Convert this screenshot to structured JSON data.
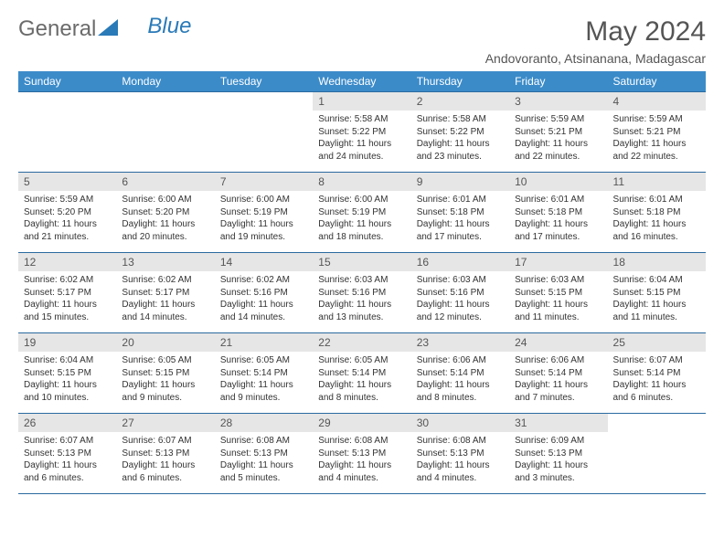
{
  "brand": {
    "word1": "General",
    "word2": "Blue"
  },
  "title": "May 2024",
  "location": "Andovoranto, Atsinanana, Madagascar",
  "colors": {
    "header_bg": "#3b8bc9",
    "header_text": "#ffffff",
    "daynum_bg": "#e6e6e6",
    "rule": "#2a6aa0",
    "brand_blue": "#2a7ab8",
    "text": "#333333"
  },
  "weekdays": [
    "Sunday",
    "Monday",
    "Tuesday",
    "Wednesday",
    "Thursday",
    "Friday",
    "Saturday"
  ],
  "weeks": [
    [
      null,
      null,
      null,
      {
        "n": "1",
        "sr": "5:58 AM",
        "ss": "5:22 PM",
        "dl": "11 hours and 24 minutes."
      },
      {
        "n": "2",
        "sr": "5:58 AM",
        "ss": "5:22 PM",
        "dl": "11 hours and 23 minutes."
      },
      {
        "n": "3",
        "sr": "5:59 AM",
        "ss": "5:21 PM",
        "dl": "11 hours and 22 minutes."
      },
      {
        "n": "4",
        "sr": "5:59 AM",
        "ss": "5:21 PM",
        "dl": "11 hours and 22 minutes."
      }
    ],
    [
      {
        "n": "5",
        "sr": "5:59 AM",
        "ss": "5:20 PM",
        "dl": "11 hours and 21 minutes."
      },
      {
        "n": "6",
        "sr": "6:00 AM",
        "ss": "5:20 PM",
        "dl": "11 hours and 20 minutes."
      },
      {
        "n": "7",
        "sr": "6:00 AM",
        "ss": "5:19 PM",
        "dl": "11 hours and 19 minutes."
      },
      {
        "n": "8",
        "sr": "6:00 AM",
        "ss": "5:19 PM",
        "dl": "11 hours and 18 minutes."
      },
      {
        "n": "9",
        "sr": "6:01 AM",
        "ss": "5:18 PM",
        "dl": "11 hours and 17 minutes."
      },
      {
        "n": "10",
        "sr": "6:01 AM",
        "ss": "5:18 PM",
        "dl": "11 hours and 17 minutes."
      },
      {
        "n": "11",
        "sr": "6:01 AM",
        "ss": "5:18 PM",
        "dl": "11 hours and 16 minutes."
      }
    ],
    [
      {
        "n": "12",
        "sr": "6:02 AM",
        "ss": "5:17 PM",
        "dl": "11 hours and 15 minutes."
      },
      {
        "n": "13",
        "sr": "6:02 AM",
        "ss": "5:17 PM",
        "dl": "11 hours and 14 minutes."
      },
      {
        "n": "14",
        "sr": "6:02 AM",
        "ss": "5:16 PM",
        "dl": "11 hours and 14 minutes."
      },
      {
        "n": "15",
        "sr": "6:03 AM",
        "ss": "5:16 PM",
        "dl": "11 hours and 13 minutes."
      },
      {
        "n": "16",
        "sr": "6:03 AM",
        "ss": "5:16 PM",
        "dl": "11 hours and 12 minutes."
      },
      {
        "n": "17",
        "sr": "6:03 AM",
        "ss": "5:15 PM",
        "dl": "11 hours and 11 minutes."
      },
      {
        "n": "18",
        "sr": "6:04 AM",
        "ss": "5:15 PM",
        "dl": "11 hours and 11 minutes."
      }
    ],
    [
      {
        "n": "19",
        "sr": "6:04 AM",
        "ss": "5:15 PM",
        "dl": "11 hours and 10 minutes."
      },
      {
        "n": "20",
        "sr": "6:05 AM",
        "ss": "5:15 PM",
        "dl": "11 hours and 9 minutes."
      },
      {
        "n": "21",
        "sr": "6:05 AM",
        "ss": "5:14 PM",
        "dl": "11 hours and 9 minutes."
      },
      {
        "n": "22",
        "sr": "6:05 AM",
        "ss": "5:14 PM",
        "dl": "11 hours and 8 minutes."
      },
      {
        "n": "23",
        "sr": "6:06 AM",
        "ss": "5:14 PM",
        "dl": "11 hours and 8 minutes."
      },
      {
        "n": "24",
        "sr": "6:06 AM",
        "ss": "5:14 PM",
        "dl": "11 hours and 7 minutes."
      },
      {
        "n": "25",
        "sr": "6:07 AM",
        "ss": "5:14 PM",
        "dl": "11 hours and 6 minutes."
      }
    ],
    [
      {
        "n": "26",
        "sr": "6:07 AM",
        "ss": "5:13 PM",
        "dl": "11 hours and 6 minutes."
      },
      {
        "n": "27",
        "sr": "6:07 AM",
        "ss": "5:13 PM",
        "dl": "11 hours and 6 minutes."
      },
      {
        "n": "28",
        "sr": "6:08 AM",
        "ss": "5:13 PM",
        "dl": "11 hours and 5 minutes."
      },
      {
        "n": "29",
        "sr": "6:08 AM",
        "ss": "5:13 PM",
        "dl": "11 hours and 4 minutes."
      },
      {
        "n": "30",
        "sr": "6:08 AM",
        "ss": "5:13 PM",
        "dl": "11 hours and 4 minutes."
      },
      {
        "n": "31",
        "sr": "6:09 AM",
        "ss": "5:13 PM",
        "dl": "11 hours and 3 minutes."
      },
      null
    ]
  ],
  "labels": {
    "sunrise": "Sunrise:",
    "sunset": "Sunset:",
    "daylight": "Daylight:"
  }
}
